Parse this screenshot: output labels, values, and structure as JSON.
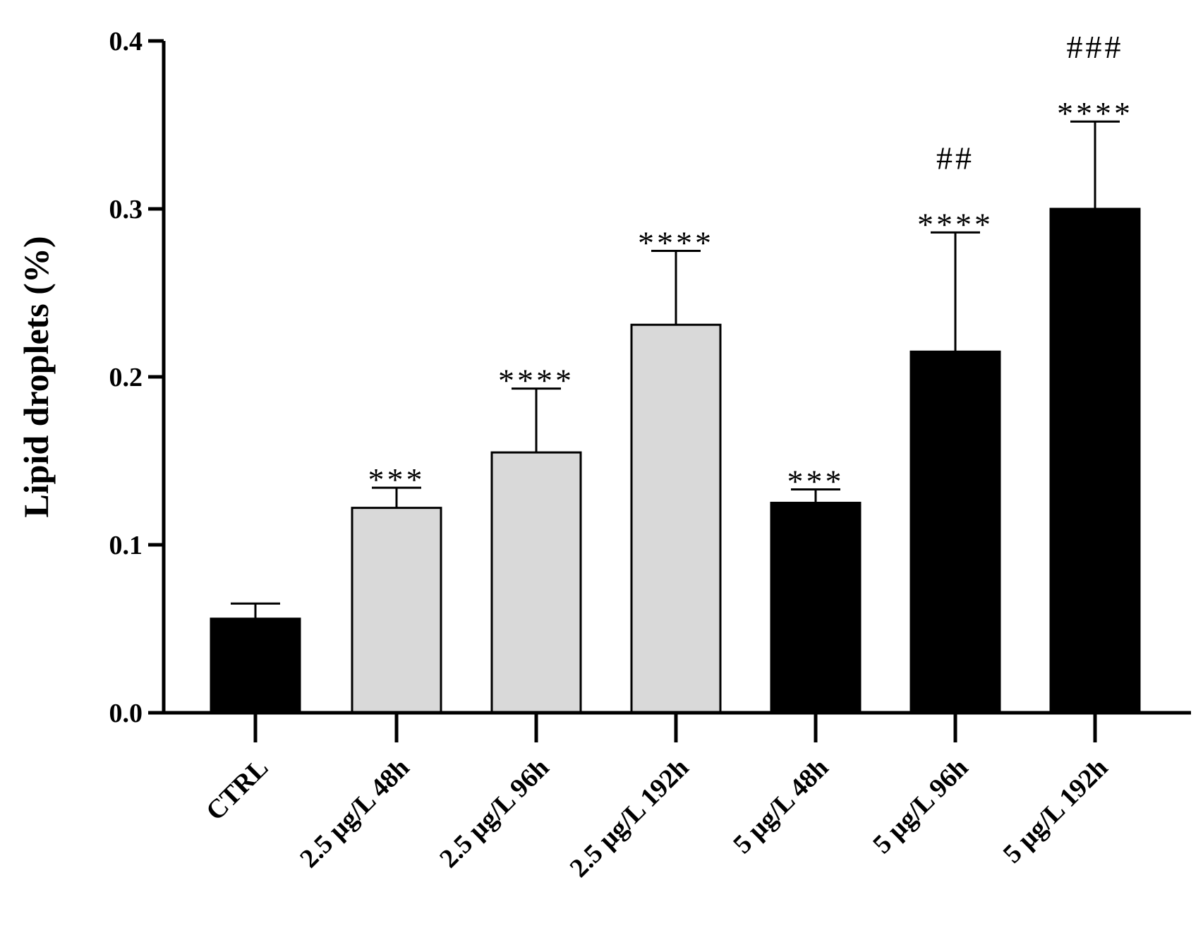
{
  "chart_data": {
    "type": "bar",
    "title": "",
    "xlabel": "",
    "ylabel": "Lipid droplets (%)",
    "ylim": [
      0,
      0.4
    ],
    "yticks": [
      "0.0",
      "0.1",
      "0.2",
      "0.3",
      "0.4"
    ],
    "grid": false,
    "legend": "none",
    "categories": [
      "CTRL",
      "2.5 µg/L 48h",
      "2.5 µg/L 96h",
      "2.5 µg/L 192h",
      "5 µg/L 48h",
      "5 µg/L 96h",
      "5 µg/L 192h"
    ],
    "values": [
      0.056,
      0.122,
      0.155,
      0.231,
      0.125,
      0.215,
      0.3
    ],
    "error": [
      0.009,
      0.012,
      0.038,
      0.044,
      0.008,
      0.071,
      0.052
    ],
    "colors": [
      "#000000",
      "#d9d9d9",
      "#d9d9d9",
      "#d9d9d9",
      "#000000",
      "#000000",
      "#000000"
    ],
    "annotations": [
      [],
      [
        "***"
      ],
      [
        "****"
      ],
      [
        "****"
      ],
      [
        "***"
      ],
      [
        "****",
        "##"
      ],
      [
        "****",
        "###"
      ]
    ]
  }
}
